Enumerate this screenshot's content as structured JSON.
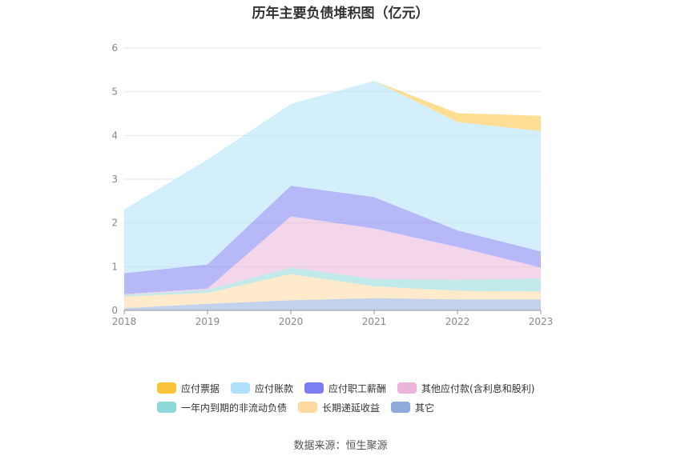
{
  "chart_data": {
    "type": "area",
    "stacked": true,
    "title": "历年主要负债堆积图（亿元）",
    "x": [
      "2018",
      "2019",
      "2020",
      "2021",
      "2022",
      "2023"
    ],
    "ylim": [
      0,
      6
    ],
    "yticks": [
      "0",
      "1",
      "2",
      "3",
      "4",
      "5",
      "6"
    ],
    "grid": true,
    "legend_position": "bottom",
    "series": [
      {
        "name": "其它",
        "color": "#8fabdc",
        "values": [
          0.05,
          0.15,
          0.23,
          0.28,
          0.25,
          0.25
        ]
      },
      {
        "name": "长期递延收益",
        "color": "#ffd9a0",
        "values": [
          0.27,
          0.25,
          0.6,
          0.27,
          0.2,
          0.18
        ]
      },
      {
        "name": "一年内到期的非流动负债",
        "color": "#8fd8d8",
        "values": [
          0.03,
          0.07,
          0.15,
          0.17,
          0.25,
          0.3
        ]
      },
      {
        "name": "其他应付款(含利息和股利)",
        "color": "#eab5d8",
        "values": [
          0.02,
          0.03,
          1.17,
          1.15,
          0.75,
          0.25
        ]
      },
      {
        "name": "应付职工薪酬",
        "color": "#7a7ef0",
        "values": [
          0.48,
          0.55,
          0.7,
          0.72,
          0.38,
          0.37
        ]
      },
      {
        "name": "应付账款",
        "color": "#b0e1fa",
        "values": [
          1.46,
          2.4,
          1.87,
          2.66,
          2.48,
          2.75
        ]
      },
      {
        "name": "应付票据",
        "color": "#fdc33a",
        "values": [
          0.0,
          0.0,
          0.0,
          0.0,
          0.2,
          0.35
        ]
      }
    ]
  },
  "legend": {
    "row1": [
      "应付票据",
      "应付账款",
      "应付职工薪酬",
      "其他应付款(含利息和股利)"
    ],
    "row2": [
      "一年内到期的非流动负债",
      "长期递延收益",
      "其它"
    ]
  },
  "source": "数据来源：恒生聚源"
}
